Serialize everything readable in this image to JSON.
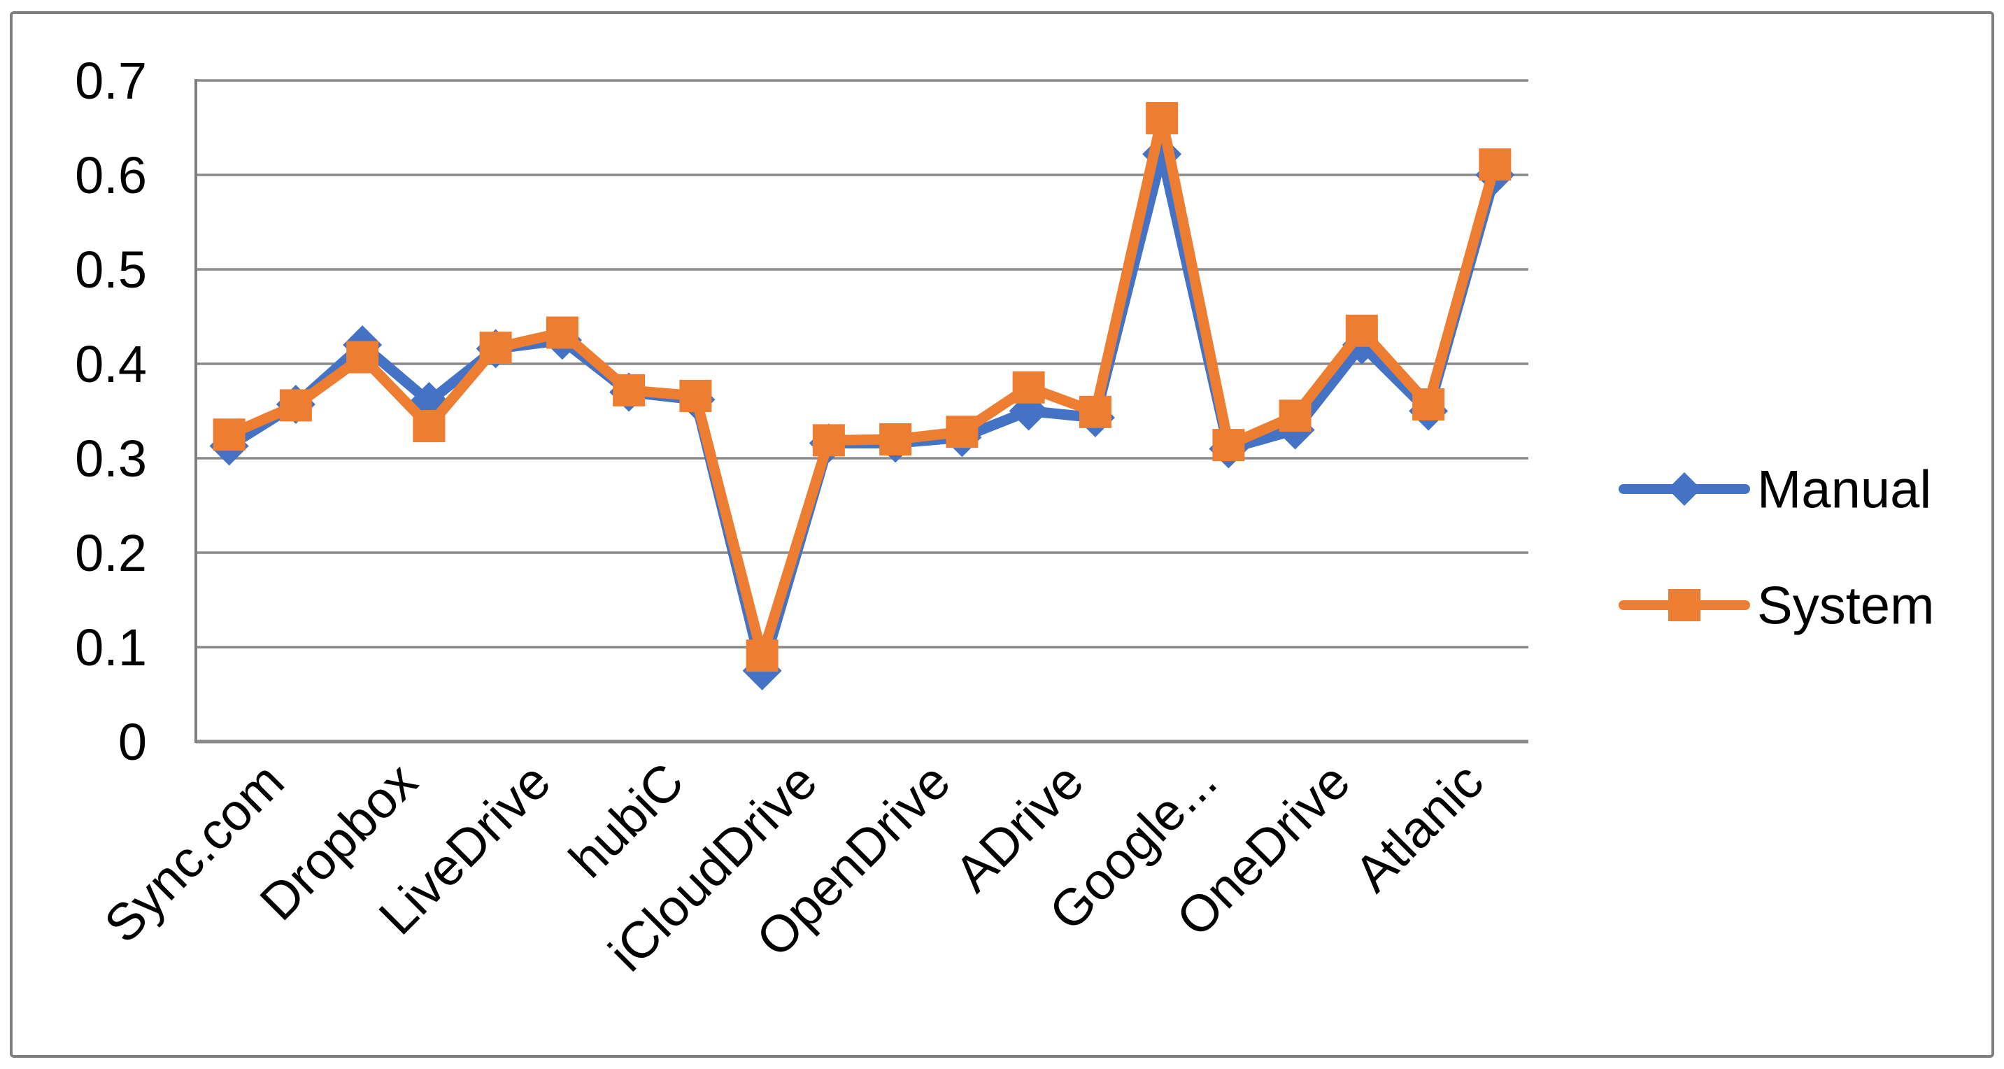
{
  "chart_data": {
    "type": "line",
    "title": "",
    "xlabel": "",
    "ylabel": "",
    "categories": [
      "Sync.com",
      "Dropbox",
      "LiveDrive",
      "hubiC",
      "iCloudDrive",
      "OpenDrive",
      "ADrive",
      "Google...",
      "OneDrive",
      "Atlanic"
    ],
    "points_per_category": 2,
    "series": [
      {
        "name": "Manual",
        "color": "#4472C4",
        "marker": "diamond",
        "values": [
          0.313,
          0.357,
          0.42,
          0.36,
          0.416,
          0.425,
          0.37,
          0.362,
          0.075,
          0.316,
          0.316,
          0.322,
          0.35,
          0.343,
          0.622,
          0.31,
          0.33,
          0.42,
          0.35,
          0.6
        ]
      },
      {
        "name": "System",
        "color": "#ED7D31",
        "marker": "square",
        "values": [
          0.325,
          0.356,
          0.407,
          0.334,
          0.417,
          0.433,
          0.372,
          0.366,
          0.091,
          0.319,
          0.32,
          0.328,
          0.375,
          0.349,
          0.66,
          0.314,
          0.345,
          0.435,
          0.357,
          0.611
        ]
      }
    ],
    "y_axis": {
      "min": 0,
      "max": 0.7,
      "step": 0.1,
      "ticks": [
        {
          "value": 0.7,
          "label": "0.7"
        },
        {
          "value": 0.6,
          "label": "0.6"
        },
        {
          "value": 0.5,
          "label": "0.5"
        },
        {
          "value": 0.4,
          "label": "0.4"
        },
        {
          "value": 0.3,
          "label": "0.3"
        },
        {
          "value": 0.2,
          "label": "0.2"
        },
        {
          "value": 0.1,
          "label": "0.1"
        },
        {
          "value": 0.0,
          "label": "0"
        }
      ]
    },
    "grid": true,
    "legend": {
      "position": "right",
      "entries": [
        "Manual",
        "System"
      ]
    },
    "colors": {
      "gridline": "#8a8a8a",
      "axis": "#808080",
      "border": "#7f7f7f",
      "text": "#000000",
      "background": "#ffffff"
    }
  }
}
